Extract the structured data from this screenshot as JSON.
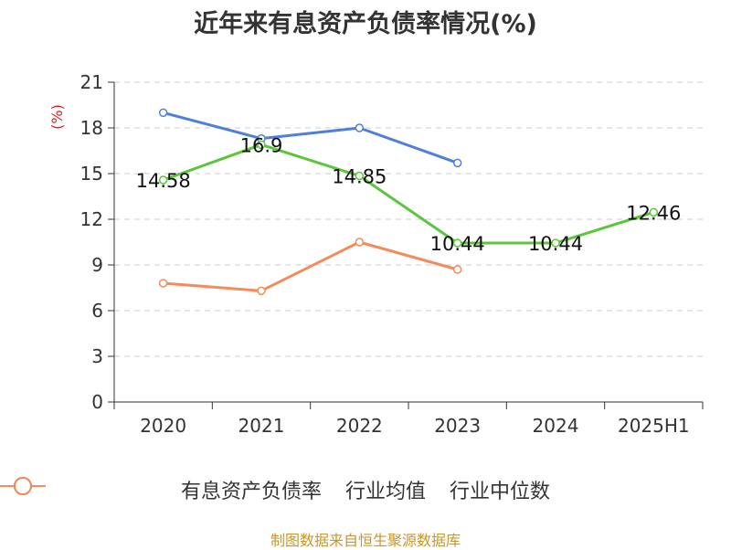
{
  "chart_data": {
    "type": "line",
    "title": "近年来有息资产负债率情况(%)",
    "ylabel": "(%)",
    "xlabel": "",
    "categories": [
      "2020",
      "2021",
      "2022",
      "2023",
      "2024",
      "2025H1"
    ],
    "ylim": [
      0,
      21
    ],
    "yticks": [
      0,
      3,
      6,
      9,
      12,
      15,
      18,
      21
    ],
    "grid": true,
    "legend_position": "bottom",
    "series": [
      {
        "name": "有息资产负债率",
        "color": "#5cc63a",
        "values": [
          14.58,
          16.9,
          14.85,
          10.44,
          10.44,
          12.46
        ],
        "labels": [
          "14.58",
          "16.9",
          "14.85",
          "10.44",
          "10.44",
          "12.46"
        ]
      },
      {
        "name": "行业均值",
        "color": "#4f7fd8",
        "values": [
          19.0,
          17.3,
          18.0,
          15.7,
          null,
          null
        ]
      },
      {
        "name": "行业中位数",
        "color": "#f58a5a",
        "values": [
          7.8,
          7.3,
          10.5,
          8.7,
          null,
          null
        ]
      }
    ]
  },
  "source": "制图数据来自恒生聚源数据库"
}
